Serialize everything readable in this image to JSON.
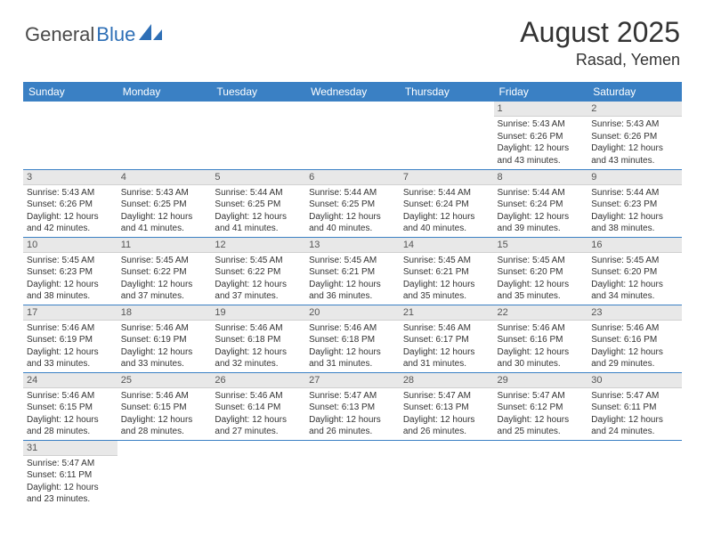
{
  "logo": {
    "general": "General",
    "blue": "Blue"
  },
  "title": "August 2025",
  "location": "Rasad, Yemen",
  "colors": {
    "header_bg": "#3a80c4",
    "header_fg": "#ffffff",
    "daynum_bg": "#e8e8e8",
    "border": "#3a80c4",
    "text": "#333333",
    "logo_gray": "#4a4a4a",
    "logo_blue": "#2e6fb6"
  },
  "daysOfWeek": [
    "Sunday",
    "Monday",
    "Tuesday",
    "Wednesday",
    "Thursday",
    "Friday",
    "Saturday"
  ],
  "weeks": [
    [
      null,
      null,
      null,
      null,
      null,
      {
        "n": "1",
        "sr": "5:43 AM",
        "ss": "6:26 PM",
        "dl": "12 hours and 43 minutes."
      },
      {
        "n": "2",
        "sr": "5:43 AM",
        "ss": "6:26 PM",
        "dl": "12 hours and 43 minutes."
      }
    ],
    [
      {
        "n": "3",
        "sr": "5:43 AM",
        "ss": "6:26 PM",
        "dl": "12 hours and 42 minutes."
      },
      {
        "n": "4",
        "sr": "5:43 AM",
        "ss": "6:25 PM",
        "dl": "12 hours and 41 minutes."
      },
      {
        "n": "5",
        "sr": "5:44 AM",
        "ss": "6:25 PM",
        "dl": "12 hours and 41 minutes."
      },
      {
        "n": "6",
        "sr": "5:44 AM",
        "ss": "6:25 PM",
        "dl": "12 hours and 40 minutes."
      },
      {
        "n": "7",
        "sr": "5:44 AM",
        "ss": "6:24 PM",
        "dl": "12 hours and 40 minutes."
      },
      {
        "n": "8",
        "sr": "5:44 AM",
        "ss": "6:24 PM",
        "dl": "12 hours and 39 minutes."
      },
      {
        "n": "9",
        "sr": "5:44 AM",
        "ss": "6:23 PM",
        "dl": "12 hours and 38 minutes."
      }
    ],
    [
      {
        "n": "10",
        "sr": "5:45 AM",
        "ss": "6:23 PM",
        "dl": "12 hours and 38 minutes."
      },
      {
        "n": "11",
        "sr": "5:45 AM",
        "ss": "6:22 PM",
        "dl": "12 hours and 37 minutes."
      },
      {
        "n": "12",
        "sr": "5:45 AM",
        "ss": "6:22 PM",
        "dl": "12 hours and 37 minutes."
      },
      {
        "n": "13",
        "sr": "5:45 AM",
        "ss": "6:21 PM",
        "dl": "12 hours and 36 minutes."
      },
      {
        "n": "14",
        "sr": "5:45 AM",
        "ss": "6:21 PM",
        "dl": "12 hours and 35 minutes."
      },
      {
        "n": "15",
        "sr": "5:45 AM",
        "ss": "6:20 PM",
        "dl": "12 hours and 35 minutes."
      },
      {
        "n": "16",
        "sr": "5:45 AM",
        "ss": "6:20 PM",
        "dl": "12 hours and 34 minutes."
      }
    ],
    [
      {
        "n": "17",
        "sr": "5:46 AM",
        "ss": "6:19 PM",
        "dl": "12 hours and 33 minutes."
      },
      {
        "n": "18",
        "sr": "5:46 AM",
        "ss": "6:19 PM",
        "dl": "12 hours and 33 minutes."
      },
      {
        "n": "19",
        "sr": "5:46 AM",
        "ss": "6:18 PM",
        "dl": "12 hours and 32 minutes."
      },
      {
        "n": "20",
        "sr": "5:46 AM",
        "ss": "6:18 PM",
        "dl": "12 hours and 31 minutes."
      },
      {
        "n": "21",
        "sr": "5:46 AM",
        "ss": "6:17 PM",
        "dl": "12 hours and 31 minutes."
      },
      {
        "n": "22",
        "sr": "5:46 AM",
        "ss": "6:16 PM",
        "dl": "12 hours and 30 minutes."
      },
      {
        "n": "23",
        "sr": "5:46 AM",
        "ss": "6:16 PM",
        "dl": "12 hours and 29 minutes."
      }
    ],
    [
      {
        "n": "24",
        "sr": "5:46 AM",
        "ss": "6:15 PM",
        "dl": "12 hours and 28 minutes."
      },
      {
        "n": "25",
        "sr": "5:46 AM",
        "ss": "6:15 PM",
        "dl": "12 hours and 28 minutes."
      },
      {
        "n": "26",
        "sr": "5:46 AM",
        "ss": "6:14 PM",
        "dl": "12 hours and 27 minutes."
      },
      {
        "n": "27",
        "sr": "5:47 AM",
        "ss": "6:13 PM",
        "dl": "12 hours and 26 minutes."
      },
      {
        "n": "28",
        "sr": "5:47 AM",
        "ss": "6:13 PM",
        "dl": "12 hours and 26 minutes."
      },
      {
        "n": "29",
        "sr": "5:47 AM",
        "ss": "6:12 PM",
        "dl": "12 hours and 25 minutes."
      },
      {
        "n": "30",
        "sr": "5:47 AM",
        "ss": "6:11 PM",
        "dl": "12 hours and 24 minutes."
      }
    ],
    [
      {
        "n": "31",
        "sr": "5:47 AM",
        "ss": "6:11 PM",
        "dl": "12 hours and 23 minutes."
      },
      null,
      null,
      null,
      null,
      null,
      null
    ]
  ],
  "labels": {
    "sunrise": "Sunrise: ",
    "sunset": "Sunset: ",
    "daylight": "Daylight: "
  }
}
